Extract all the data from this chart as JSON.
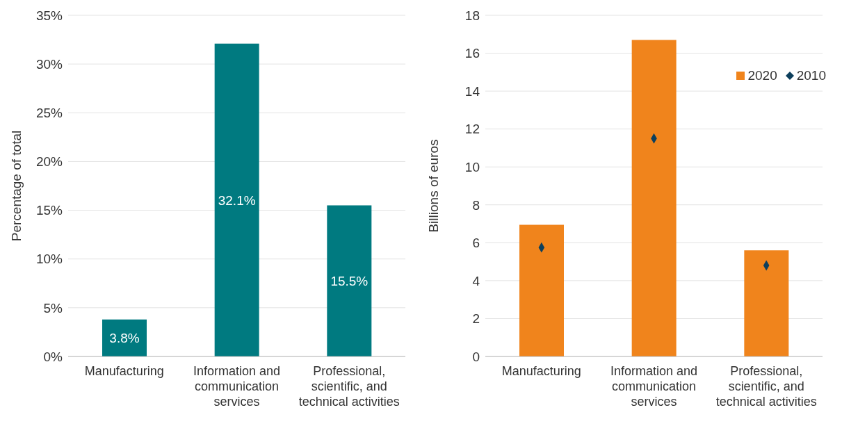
{
  "chart_data": [
    {
      "type": "bar",
      "ylabel": "Percentage of total",
      "categories": [
        "Manufacturing",
        "Information and communication services",
        "Professional, scientific, and technical activities"
      ],
      "values": [
        3.8,
        32.1,
        15.5
      ],
      "value_labels": [
        "3.8%",
        "32.1%",
        "15.5%"
      ],
      "color": "#007a80",
      "ylim": [
        0,
        35
      ],
      "yticks": [
        {
          "value": 0,
          "label": "0%"
        },
        {
          "value": 5,
          "label": "5%"
        },
        {
          "value": 10,
          "label": "10%"
        },
        {
          "value": 15,
          "label": "15%"
        },
        {
          "value": 20,
          "label": "20%"
        },
        {
          "value": 25,
          "label": "25%"
        },
        {
          "value": 30,
          "label": "30%"
        },
        {
          "value": 35,
          "label": "35%"
        }
      ],
      "grid": "y"
    },
    {
      "type": "bar",
      "ylabel": "Billions of euros",
      "categories": [
        "Manufacturing",
        "Information and communication services",
        "Professional, scientific, and technical activities"
      ],
      "series": [
        {
          "name": "2020",
          "color": "#f0841c",
          "values": [
            6.95,
            16.7,
            5.6
          ]
        },
        {
          "name": "2010",
          "type": "scatter",
          "color": "#0d3f5c",
          "values": [
            5.75,
            11.5,
            4.8
          ]
        }
      ],
      "marker": "diamond",
      "ylim": [
        0,
        18
      ],
      "yticks": [
        0,
        2,
        4,
        6,
        8,
        10,
        12,
        14,
        16,
        18
      ],
      "grid": "y",
      "legend": "top right"
    }
  ]
}
